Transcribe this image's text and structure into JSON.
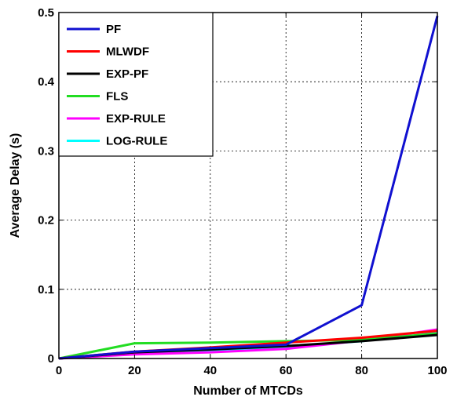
{
  "chart_data": {
    "type": "line",
    "title": "",
    "xlabel": "Number of MTCDs",
    "ylabel": "Average Delay (s)",
    "xlim": [
      0,
      100
    ],
    "ylim": [
      0,
      0.5
    ],
    "xticks": [
      0,
      20,
      40,
      60,
      80,
      100
    ],
    "yticks": [
      0,
      0.1,
      0.2,
      0.3,
      0.4,
      0.5
    ],
    "xtick_labels": [
      "0",
      "20",
      "40",
      "60",
      "80",
      "100"
    ],
    "ytick_labels": [
      "0",
      "0.1",
      "0.2",
      "0.3",
      "0.4",
      "0.5"
    ],
    "grid": true,
    "legend_position": "top-left",
    "x": [
      0,
      20,
      40,
      60,
      80,
      100
    ],
    "series": [
      {
        "name": "PF",
        "color": "#1010d0",
        "values": [
          0,
          0.01,
          0.015,
          0.02,
          0.077,
          0.495
        ]
      },
      {
        "name": "MLWDF",
        "color": "#ff0000",
        "values": [
          0,
          0.01,
          0.016,
          0.023,
          0.03,
          0.04
        ]
      },
      {
        "name": "EXP-PF",
        "color": "#000000",
        "values": [
          0,
          0.009,
          0.013,
          0.018,
          0.025,
          0.034
        ]
      },
      {
        "name": "FLS",
        "color": "#22dd22",
        "values": [
          0,
          0.022,
          0.023,
          0.025,
          0.027,
          0.036
        ]
      },
      {
        "name": "EXP-RULE",
        "color": "#ff00ff",
        "values": [
          0,
          0.006,
          0.009,
          0.014,
          0.026,
          0.042
        ]
      },
      {
        "name": "LOG-RULE",
        "color": "#00ffff",
        "values": [
          0,
          0.008,
          0.012,
          0.017,
          0.025,
          0.037
        ]
      }
    ]
  }
}
